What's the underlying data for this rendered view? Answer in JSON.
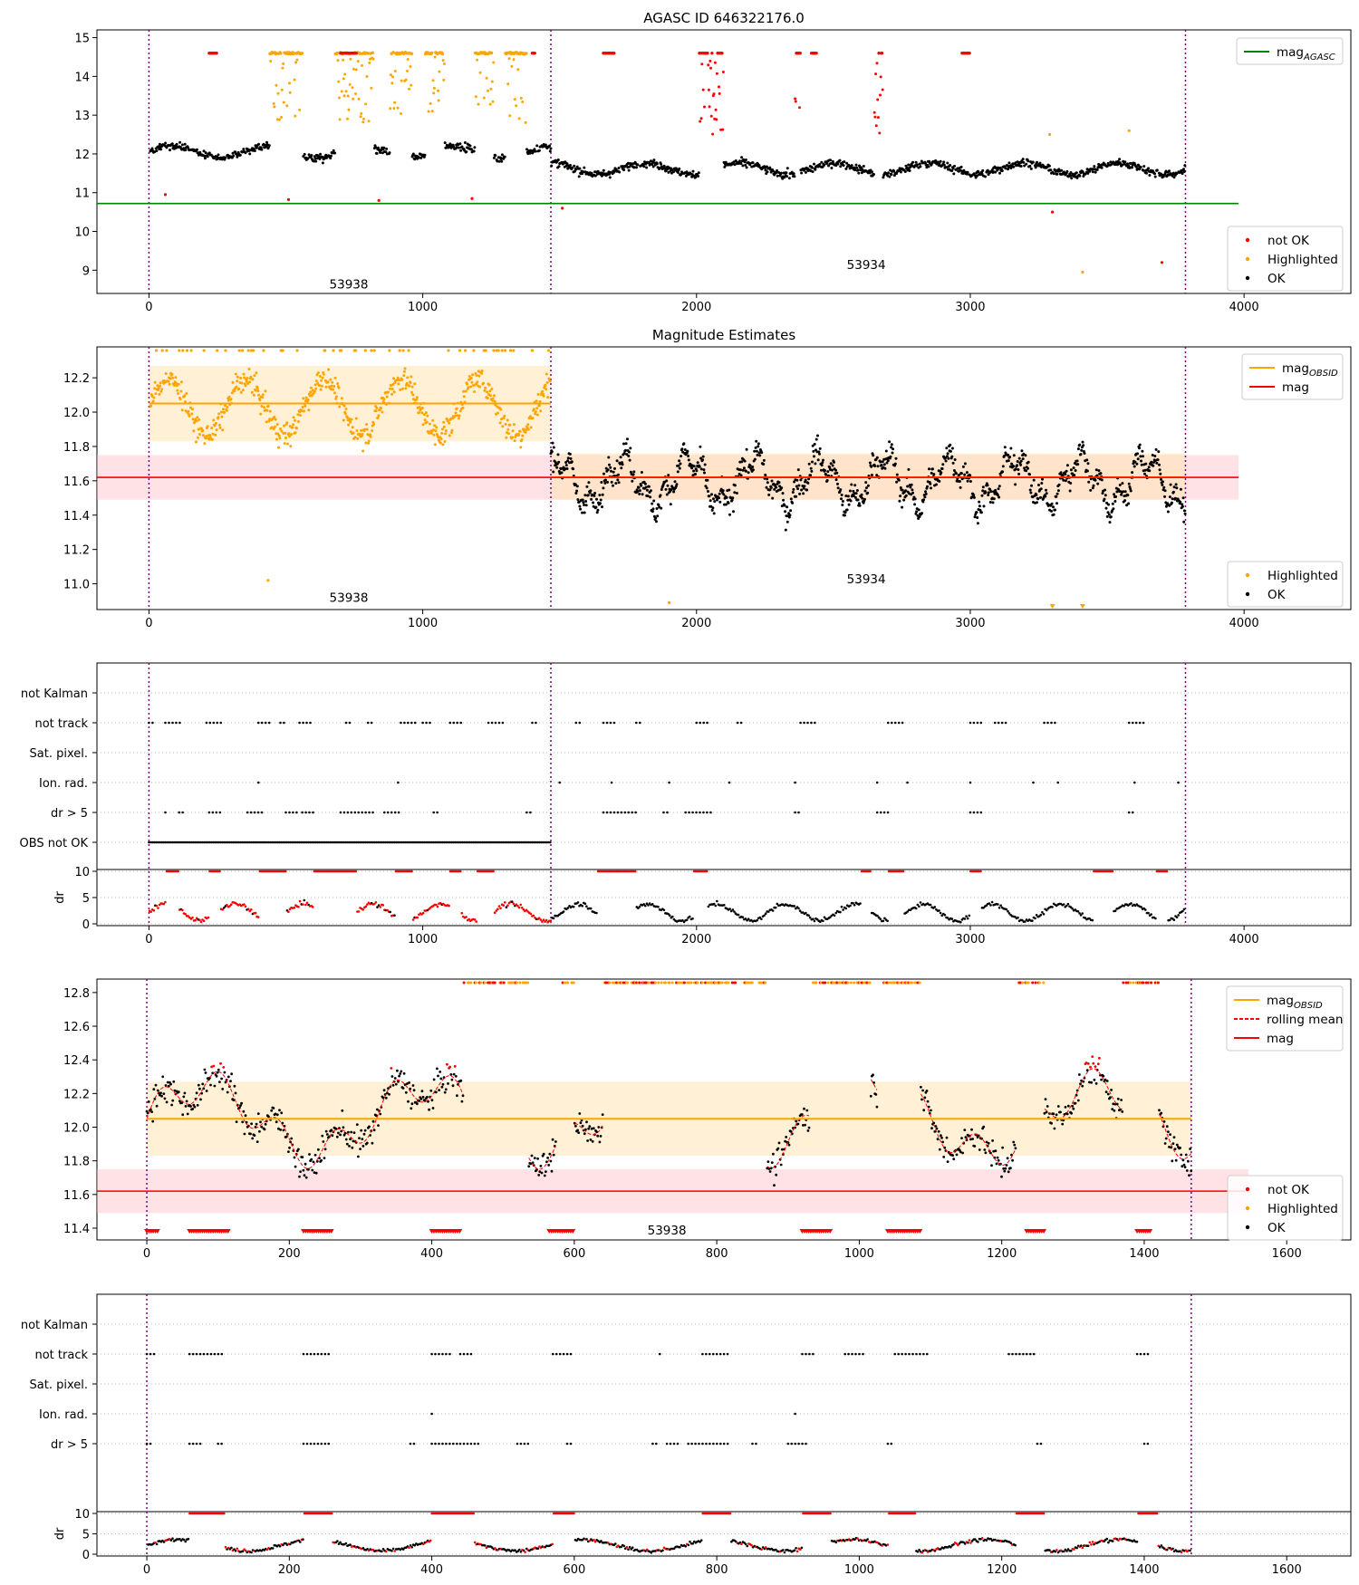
{
  "chart_data": [
    {
      "type": "scatter",
      "title": "AGASC ID 646322176.0",
      "xlim": [
        -190,
        4390
      ],
      "ylim": [
        8.4,
        15.2
      ],
      "xticks": [
        0,
        1000,
        2000,
        3000,
        4000
      ],
      "yticks": [
        9,
        10,
        11,
        12,
        13,
        14,
        15
      ],
      "obs_boundaries": [
        0,
        1468,
        3786
      ],
      "mag_agasc": 10.72,
      "obsid_labels": [
        {
          "text": "53938",
          "x": 730,
          "y": 8.65
        },
        {
          "text": "53934",
          "x": 2620,
          "y": 9.15
        }
      ],
      "legend_top": [
        "mag_AGASC"
      ],
      "legend_bottom": [
        "not OK",
        "Highlighted",
        "OK"
      ],
      "segments": [
        {
          "x0": 0,
          "x1": 1468,
          "level": 12.05,
          "scatter": 0.12
        },
        {
          "x0": 1468,
          "x1": 3786,
          "level": 11.62,
          "scatter": 0.12
        }
      ],
      "highlight_windows": [
        [
          440,
          560
        ],
        [
          680,
          820
        ],
        [
          880,
          960
        ],
        [
          1010,
          1080
        ],
        [
          1190,
          1260
        ],
        [
          1300,
          1380
        ]
      ],
      "red_windows": [
        [
          700,
          760
        ],
        [
          2010,
          2100
        ],
        [
          2360,
          2380
        ],
        [
          2650,
          2680
        ]
      ]
    },
    {
      "type": "scatter",
      "title": "Magnitude Estimates",
      "xlim": [
        -190,
        4390
      ],
      "ylim": [
        10.85,
        12.38
      ],
      "xticks": [
        0,
        1000,
        2000,
        3000,
        4000
      ],
      "yticks": [
        11.0,
        11.2,
        11.4,
        11.6,
        11.8,
        12.0,
        12.2
      ],
      "obs_boundaries": [
        0,
        1468,
        3786
      ],
      "mag_obsid": [
        {
          "x0": 0,
          "x1": 1468,
          "mag": 12.05,
          "lo": 11.83,
          "hi": 12.27
        },
        {
          "x0": 1468,
          "x1": 3786,
          "mag": 11.62,
          "lo": 11.49,
          "hi": 11.76
        }
      ],
      "mag": 11.62,
      "mag_lo": 11.49,
      "mag_hi": 11.75,
      "obsid_labels": [
        {
          "text": "53938",
          "x": 730,
          "y": 10.92
        },
        {
          "text": "53934",
          "x": 2620,
          "y": 11.03
        }
      ],
      "legend_top": [
        "mag_OBSID",
        "mag"
      ],
      "legend_bottom": [
        "Highlighted",
        "OK"
      ]
    },
    {
      "type": "scatter",
      "xlim": [
        -190,
        4390
      ],
      "xticks": [
        0,
        1000,
        2000,
        3000,
        4000
      ],
      "flag_labels": [
        "not Kalman",
        "not track",
        "Sat. pixel.",
        "Ion. rad.",
        "dr > 5",
        "OBS not OK"
      ],
      "dr_label": "dr",
      "dr_yticks": [
        0,
        5,
        10
      ],
      "obs_boundaries": [
        0,
        1468,
        3786
      ]
    },
    {
      "type": "scatter",
      "xlim": [
        -70,
        1690
      ],
      "ylim": [
        11.33,
        12.88
      ],
      "xticks": [
        0,
        200,
        400,
        600,
        800,
        1000,
        1200,
        1400,
        1600
      ],
      "yticks": [
        11.4,
        11.6,
        11.8,
        12.0,
        12.2,
        12.4,
        12.6,
        12.8
      ],
      "obs_boundaries": [
        0,
        1466
      ],
      "mag_obsid": 12.05,
      "mag_obsid_lo": 11.83,
      "mag_obsid_hi": 12.27,
      "mag": 11.62,
      "mag_lo": 11.49,
      "mag_hi": 11.75,
      "obsid_labels": [
        {
          "text": "53938",
          "x": 730,
          "y": 11.39
        }
      ],
      "legend": [
        "mag_OBSID",
        "rolling mean",
        "mag",
        "not OK",
        "Highlighted",
        "OK"
      ],
      "gaps": [
        [
          445,
          535
        ],
        [
          575,
          600
        ],
        [
          640,
          870
        ],
        [
          930,
          1015
        ],
        [
          1025,
          1085
        ],
        [
          1220,
          1260
        ],
        [
          1370,
          1420
        ]
      ]
    },
    {
      "type": "scatter",
      "xlim": [
        -70,
        1690
      ],
      "xticks": [
        0,
        200,
        400,
        600,
        800,
        1000,
        1200,
        1400,
        1600
      ],
      "flag_labels": [
        "not Kalman",
        "not track",
        "Sat. pixel.",
        "Ion. rad.",
        "dr > 5"
      ],
      "dr_label": "dr",
      "dr_yticks": [
        0,
        5,
        10
      ],
      "obs_boundaries": [
        0,
        1466
      ]
    }
  ],
  "colors": {
    "not_ok": "#ff0000",
    "highlighted": "#ffa500",
    "ok": "#000000",
    "agasc_line": "#008000",
    "obsid_line": "#ffa500",
    "mag_line": "#ff0000",
    "boundary": "#800080"
  }
}
